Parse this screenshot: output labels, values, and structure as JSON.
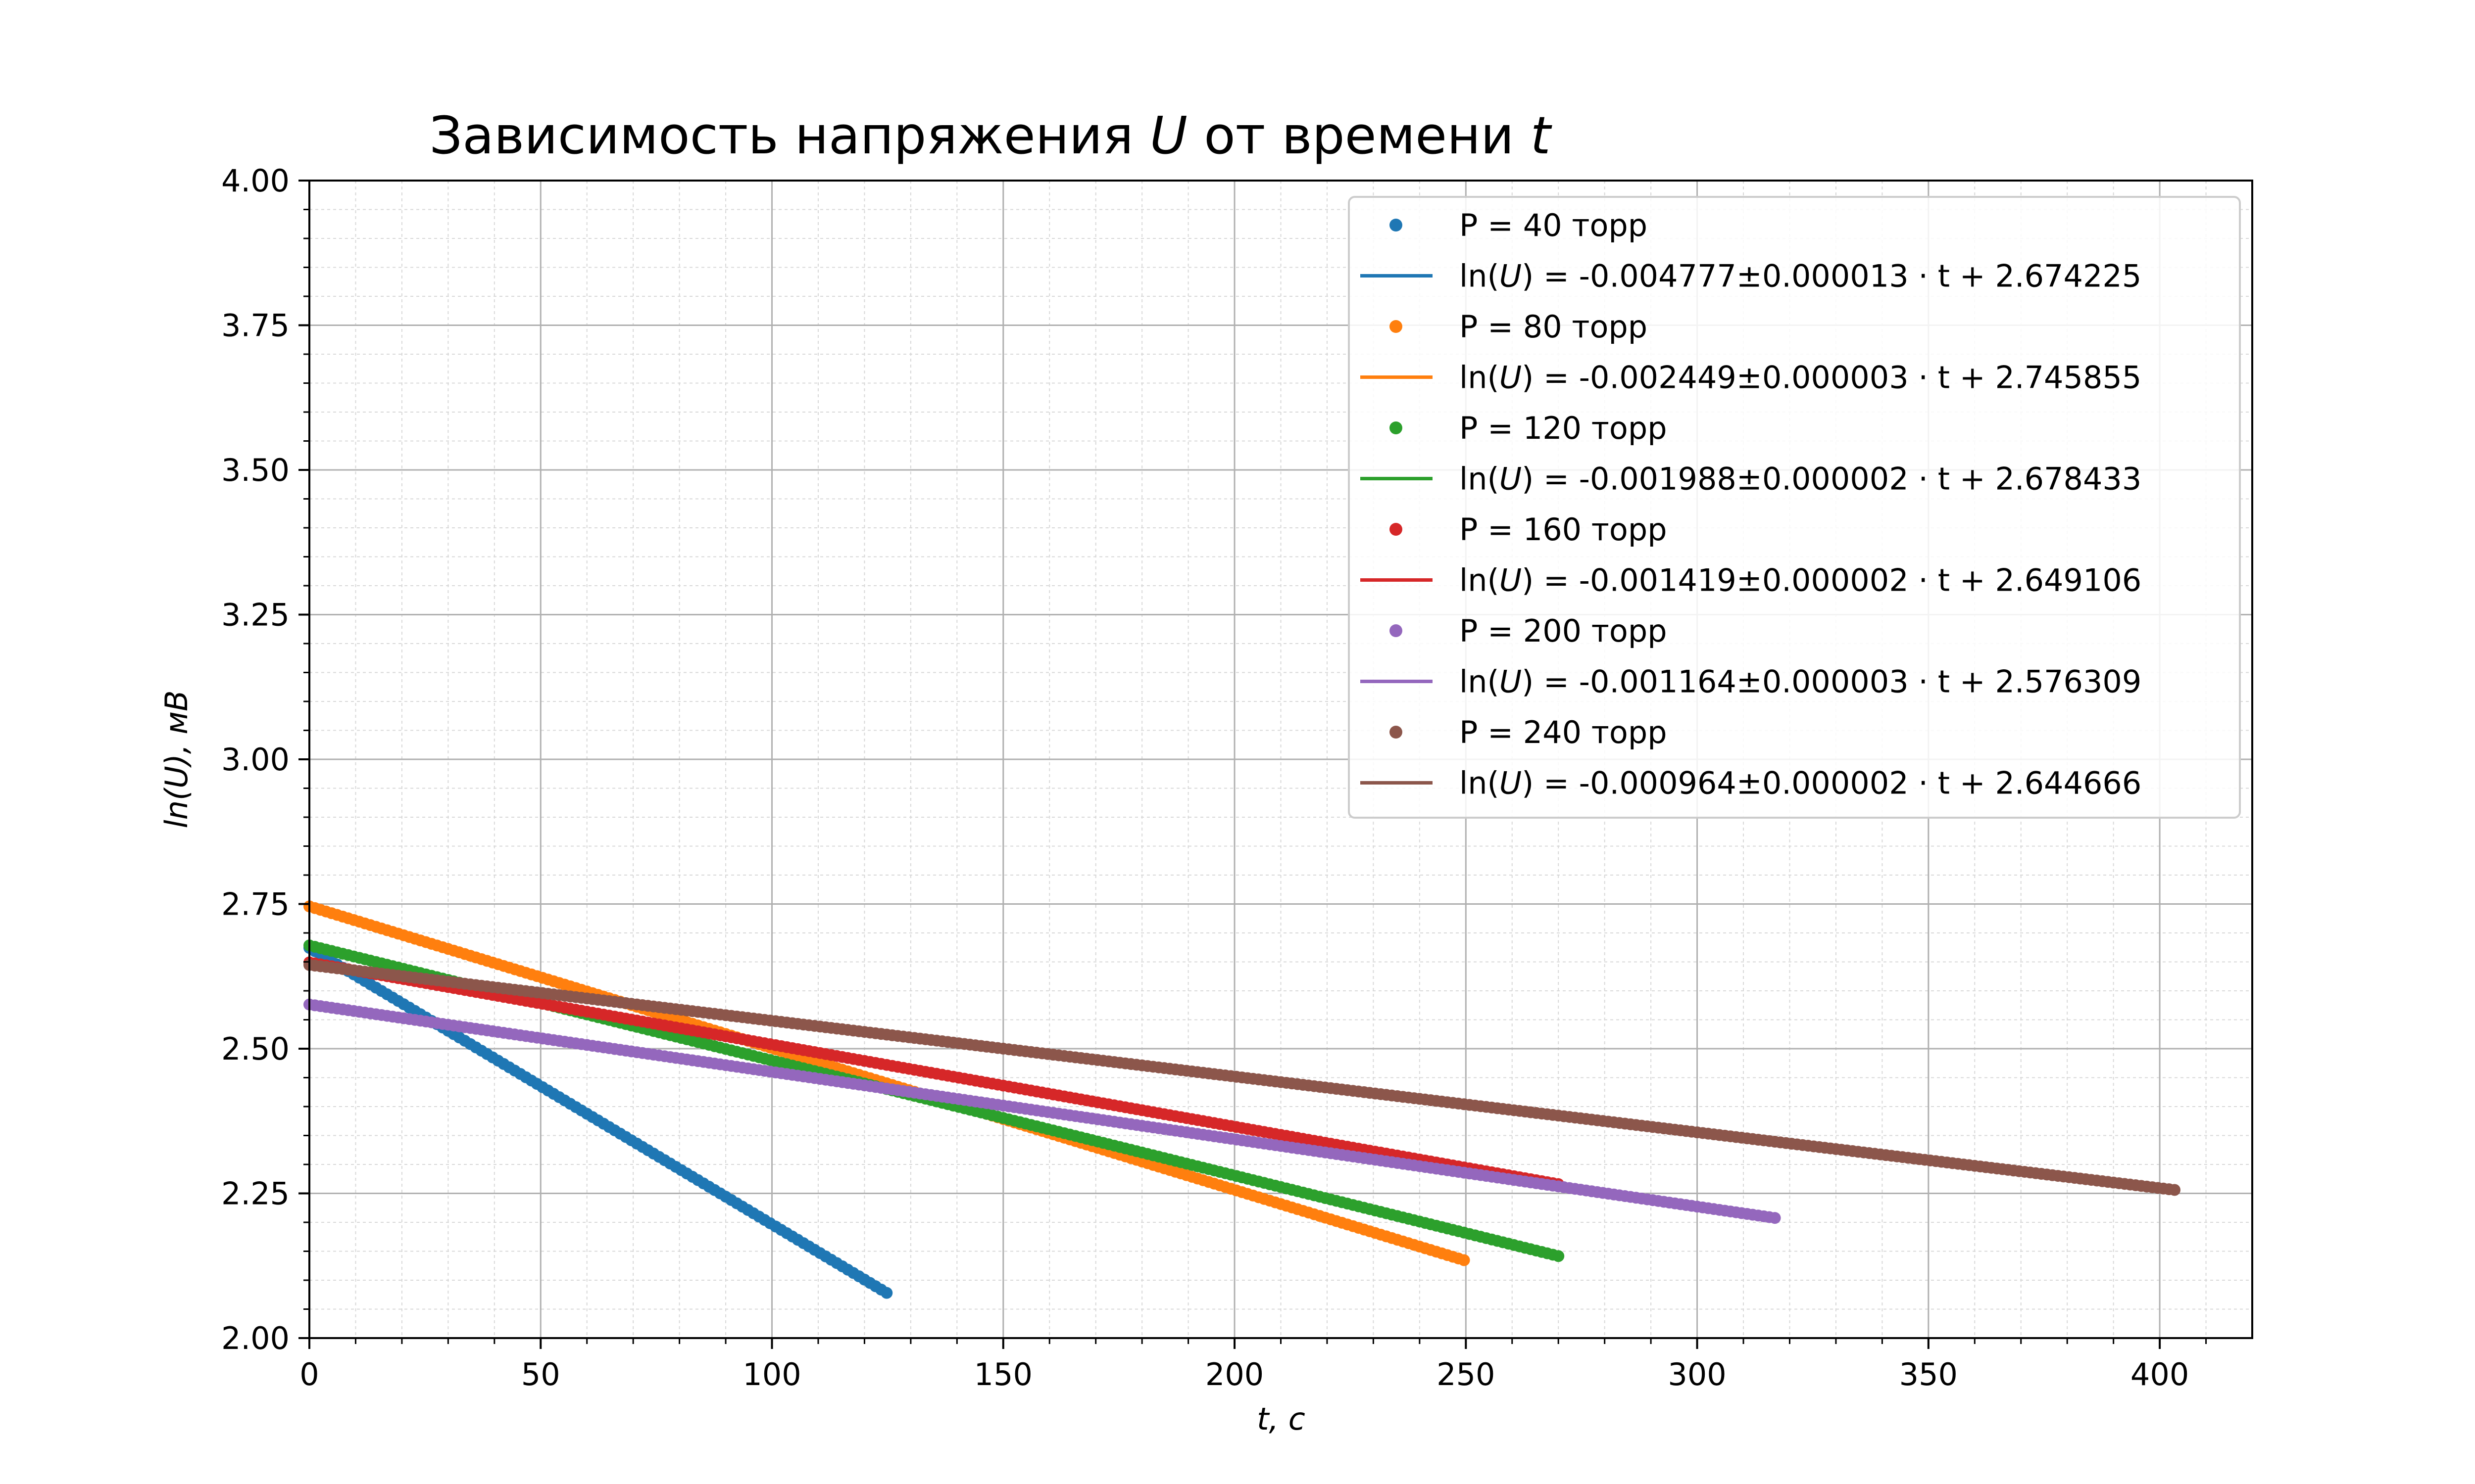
{
  "chart_data": {
    "type": "scatter",
    "title": "Зависимость напряжения U от времени t",
    "title_parts": {
      "prefix": "Зависимость напряжения ",
      "var_u": "U",
      "middle": " от времени ",
      "var_t": "t"
    },
    "xlabel": "t, c",
    "ylabel": "ln(U), мВ",
    "xlim": [
      0,
      420
    ],
    "ylim": [
      2.0,
      4.0
    ],
    "x_ticks": [
      0,
      50,
      100,
      150,
      200,
      250,
      300,
      350,
      400
    ],
    "x_tick_labels": [
      "0",
      "50",
      "100",
      "150",
      "200",
      "250",
      "300",
      "350",
      "400"
    ],
    "y_ticks": [
      2.0,
      2.25,
      2.5,
      2.75,
      3.0,
      3.25,
      3.5,
      3.75,
      4.0
    ],
    "y_tick_labels": [
      "2.00",
      "2.25",
      "2.50",
      "2.75",
      "3.00",
      "3.25",
      "3.50",
      "3.75",
      "4.00"
    ],
    "grid": "major and minor",
    "legend_position": "top-right",
    "series": [
      {
        "name": "P = 40 торр",
        "color": "#1f77b4",
        "t_range": [
          0,
          125
        ],
        "fit_label": {
          "pre": "ln(",
          "var": "U",
          "post": ") = -0.004777±0.000013 · t + 2.674225"
        },
        "slope": -0.004777,
        "slope_err": 1.3e-05,
        "intercept": 2.674225
      },
      {
        "name": "P = 80 торр",
        "color": "#ff7f0e",
        "t_range": [
          0,
          250
        ],
        "fit_label": {
          "pre": "ln(",
          "var": "U",
          "post": ") = -0.002449±0.000003 · t + 2.745855"
        },
        "slope": -0.002449,
        "slope_err": 3e-06,
        "intercept": 2.745855
      },
      {
        "name": "P = 120 торр",
        "color": "#2ca02c",
        "t_range": [
          0,
          270
        ],
        "fit_label": {
          "pre": "ln(",
          "var": "U",
          "post": ") = -0.001988±0.000002 · t + 2.678433"
        },
        "slope": -0.001988,
        "slope_err": 2e-06,
        "intercept": 2.678433
      },
      {
        "name": "P = 160 торр",
        "color": "#d62728",
        "t_range": [
          0,
          270
        ],
        "fit_label": {
          "pre": "ln(",
          "var": "U",
          "post": ") = -0.001419±0.000002 · t + 2.649106"
        },
        "slope": -0.001419,
        "slope_err": 2e-06,
        "intercept": 2.649106
      },
      {
        "name": "P = 200 торр",
        "color": "#9467bd",
        "t_range": [
          0,
          317
        ],
        "fit_label": {
          "pre": "ln(",
          "var": "U",
          "post": ") = -0.001164±0.000003 · t + 2.576309"
        },
        "slope": -0.001164,
        "slope_err": 3e-06,
        "intercept": 2.576309
      },
      {
        "name": "P = 240 торр",
        "color": "#8c564b",
        "t_range": [
          0,
          404
        ],
        "fit_label": {
          "pre": "ln(",
          "var": "U",
          "post": ") = -0.000964±0.000002 · t + 2.644666"
        },
        "slope": -0.000964,
        "slope_err": 2e-06,
        "intercept": 2.644666
      }
    ]
  }
}
